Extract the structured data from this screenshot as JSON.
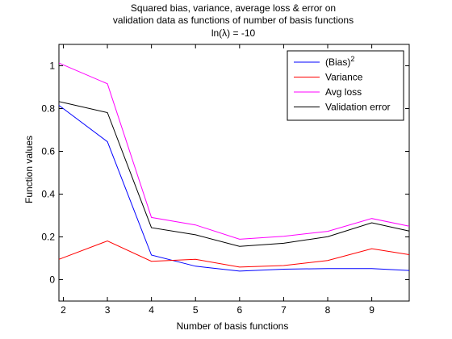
{
  "chart_data": {
    "type": "line",
    "title": [
      "Squared bias, variance, average loss & error on",
      "validation data as functions of number of basis functions",
      "ln(λ) = -10"
    ],
    "xlabel": "Number of basis functions",
    "ylabel": "Function values",
    "xlim": [
      1.9,
      9.85
    ],
    "ylim": [
      -0.1,
      1.1
    ],
    "xticks": [
      2,
      3,
      4,
      5,
      6,
      7,
      8,
      9
    ],
    "yticks": [
      0,
      0.2,
      0.4,
      0.6,
      0.8,
      1
    ],
    "ytick_labels": [
      "0",
      "0.2",
      "0.4",
      "0.6",
      "0.8",
      "1"
    ],
    "grid": false,
    "legend_position": "top-right",
    "x": [
      1.9,
      3,
      4,
      5,
      6,
      7,
      8,
      9,
      9.85
    ],
    "series": [
      {
        "name": "(Bias)",
        "superscript": "2",
        "color": "#0000ff",
        "values": [
          0.815,
          0.645,
          0.115,
          0.063,
          0.04,
          0.049,
          0.052,
          0.052,
          0.043
        ]
      },
      {
        "name": "Variance",
        "color": "#ff0000",
        "values": [
          0.095,
          0.181,
          0.086,
          0.095,
          0.059,
          0.066,
          0.09,
          0.145,
          0.117
        ]
      },
      {
        "name": "Avg loss",
        "color": "#ff00ff",
        "values": [
          1.013,
          0.916,
          0.291,
          0.256,
          0.189,
          0.203,
          0.226,
          0.286,
          0.25
        ]
      },
      {
        "name": "Validation error",
        "color": "#000000",
        "values": [
          0.833,
          0.781,
          0.243,
          0.21,
          0.156,
          0.17,
          0.201,
          0.266,
          0.227
        ]
      }
    ]
  }
}
